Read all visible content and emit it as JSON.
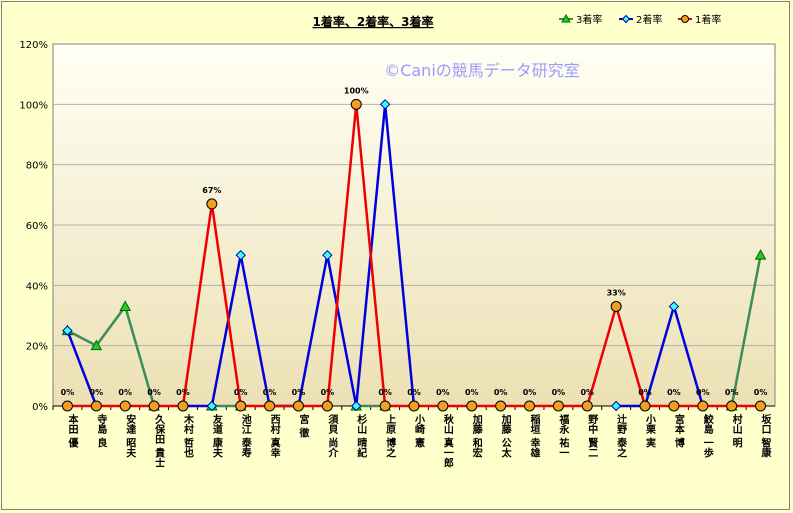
{
  "chart_data": {
    "type": "line",
    "title": "1着率、2着率、3着率",
    "watermark": "©Caniの競馬データ研究室",
    "ylim": [
      0,
      120
    ],
    "yticks": [
      "0%",
      "20%",
      "40%",
      "60%",
      "80%",
      "100%",
      "120%"
    ],
    "grid": true,
    "legend_position": "top-right",
    "categories": [
      "本田 優",
      "寺島 良",
      "安達 昭夫",
      "久保田 貴士",
      "木村 哲也",
      "友道 康夫",
      "池江 泰寿",
      "西村 真幸",
      "宮 徹",
      "須貝 尚介",
      "杉山 晴紀",
      "上原 博之",
      "小崎 憲",
      "秋山 真一郎",
      "加藤 和宏",
      "加藤 公太",
      "稲垣 幸雄",
      "福永 祐一",
      "野中 賢二",
      "辻野 泰之",
      "小栗 実",
      "宮本 博",
      "鮫島 一歩",
      "村山 明",
      "坂口 智康"
    ],
    "series": [
      {
        "name": "3着率",
        "color": "#3c8c5a",
        "marker": "triangle",
        "marker_color": "#22cc22",
        "values": [
          25,
          20,
          33,
          0,
          null,
          0,
          0,
          null,
          null,
          null,
          0,
          0,
          null,
          null,
          null,
          null,
          null,
          null,
          null,
          null,
          null,
          null,
          null,
          0,
          50
        ]
      },
      {
        "name": "2着率",
        "color": "#0000e0",
        "marker": "diamond",
        "marker_color": "#33ffff",
        "values": [
          25,
          0,
          null,
          null,
          0,
          0,
          50,
          0,
          0,
          50,
          0,
          100,
          0,
          null,
          null,
          null,
          null,
          null,
          null,
          0,
          0,
          33,
          0,
          null,
          null
        ]
      },
      {
        "name": "1着率",
        "color": "#ee0000",
        "marker": "circle",
        "marker_color": "#f0a020",
        "values": [
          0,
          0,
          0,
          0,
          0,
          67,
          0,
          0,
          0,
          0,
          100,
          0,
          0,
          0,
          0,
          0,
          0,
          0,
          0,
          33,
          0,
          0,
          0,
          0,
          0
        ]
      }
    ],
    "data_labels": [
      "0%",
      "0%",
      "0%",
      "0%",
      "0%",
      "67%",
      "0%",
      "0%",
      "0%",
      "0%",
      "100%",
      "0%",
      "0%",
      "0%",
      "0%",
      "0%",
      "0%",
      "0%",
      "0%",
      "33%",
      "0%",
      "0%",
      "0%",
      "0%",
      "0%"
    ]
  }
}
